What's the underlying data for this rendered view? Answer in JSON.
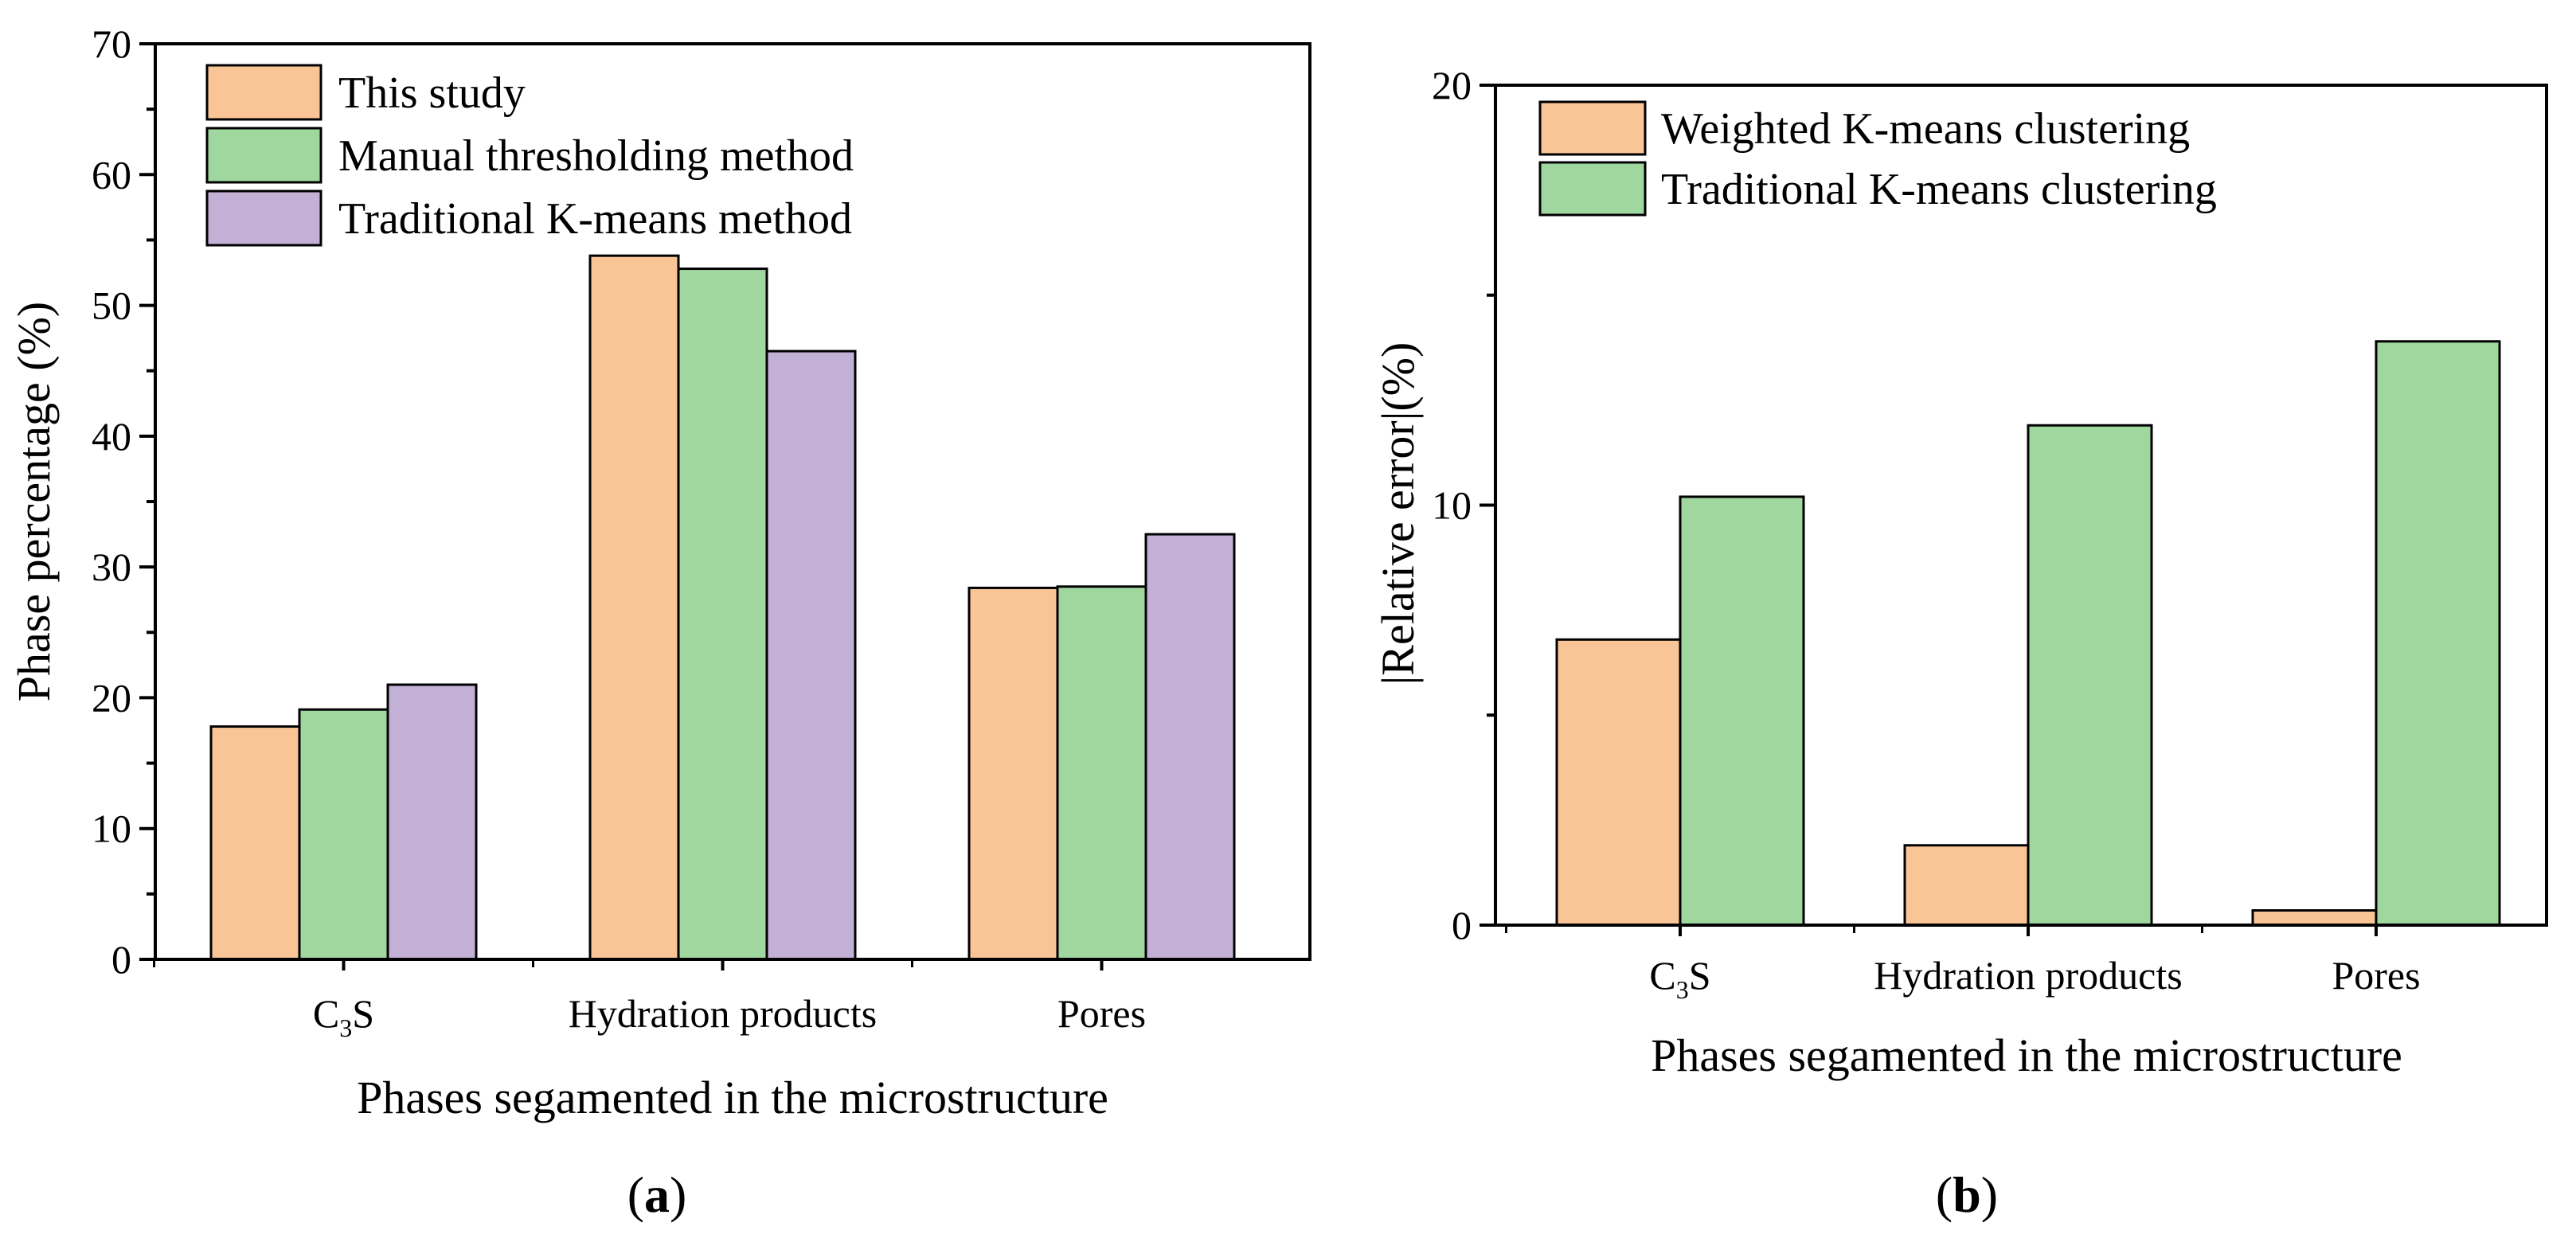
{
  "colors": {
    "orange": "#f9c597",
    "green": "#9fd79f",
    "purple": "#c2b0d6",
    "stroke": "#000000"
  },
  "chart_data": [
    {
      "type": "bar",
      "panel_label": "(a)",
      "panel_label_letter": "a",
      "categories": [
        "C3S",
        "Hydration products",
        "Pores"
      ],
      "category_labels": [
        {
          "main": "C",
          "sub": "3",
          "rest": "S"
        },
        {
          "main": "Hydration products",
          "sub": "",
          "rest": ""
        },
        {
          "main": "Pores",
          "sub": "",
          "rest": ""
        }
      ],
      "series": [
        {
          "name": "This study",
          "color_key": "orange",
          "values": [
            17.8,
            53.8,
            28.4
          ]
        },
        {
          "name": "Manual thresholding method",
          "color_key": "green",
          "values": [
            19.1,
            52.8,
            28.5
          ]
        },
        {
          "name": "Traditional K-means method",
          "color_key": "purple",
          "values": [
            21.0,
            46.5,
            32.5
          ]
        }
      ],
      "xlabel": "Phases segamented in the microstructure",
      "ylabel": "Phase percentage (%)",
      "ylim": [
        0,
        70
      ],
      "yticks": [
        0,
        10,
        20,
        30,
        40,
        50,
        60,
        70
      ],
      "yminor_step": 5,
      "legend_position": "top-left"
    },
    {
      "type": "bar",
      "panel_label": "(b)",
      "panel_label_letter": "b",
      "categories": [
        "C3S",
        "Hydration products",
        "Pores"
      ],
      "category_labels": [
        {
          "main": "C",
          "sub": "3",
          "rest": "S"
        },
        {
          "main": "Hydration products",
          "sub": "",
          "rest": ""
        },
        {
          "main": "Pores",
          "sub": "",
          "rest": ""
        }
      ],
      "series": [
        {
          "name": "Weighted K-means clustering",
          "color_key": "orange",
          "values": [
            6.8,
            1.9,
            0.35
          ]
        },
        {
          "name": "Traditional K-means clustering",
          "color_key": "green",
          "values": [
            10.2,
            11.9,
            13.9
          ]
        }
      ],
      "xlabel": "Phases segamented in the microstructure",
      "ylabel": "|Relative error|(%)",
      "ylim": [
        0,
        20
      ],
      "yticks": [
        0,
        10,
        20
      ],
      "yminor_step": 5,
      "legend_position": "top-left"
    }
  ]
}
